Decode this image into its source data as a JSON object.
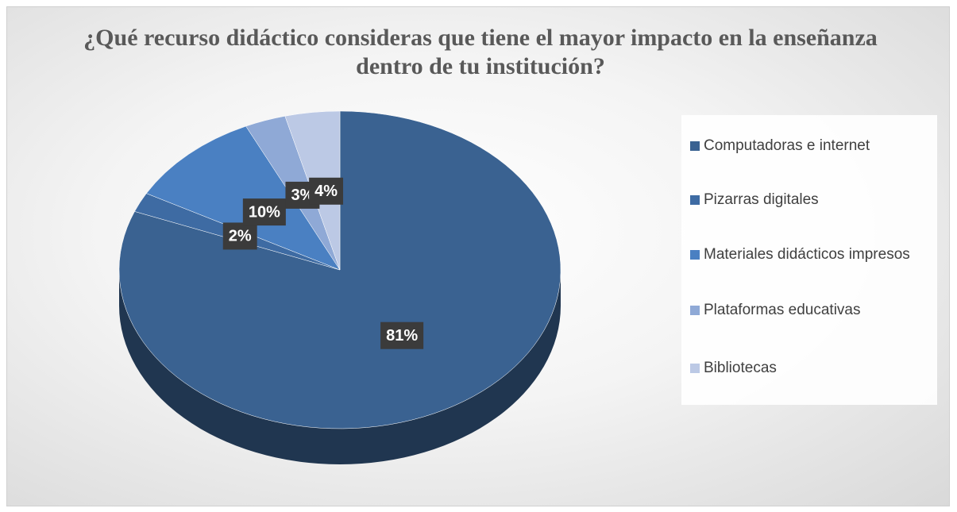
{
  "chart_data": {
    "type": "pie",
    "title": "¿Qué recurso didáctico consideras que tiene el mayor impacto en la enseñanza dentro de tu institución?",
    "categories": [
      "Computadoras e internet",
      "Pizarras digitales",
      "Materiales didácticos impresos",
      "Plataformas educativas",
      "Bibliotecas"
    ],
    "values": [
      81,
      2,
      10,
      3,
      4
    ],
    "value_labels": [
      "81%",
      "2%",
      "10%",
      "3%",
      "4%"
    ],
    "colors": [
      "#3a6291",
      "#3e6ba3",
      "#4a80c2",
      "#8fa9d6",
      "#bcc9e5"
    ],
    "legend": "right"
  }
}
